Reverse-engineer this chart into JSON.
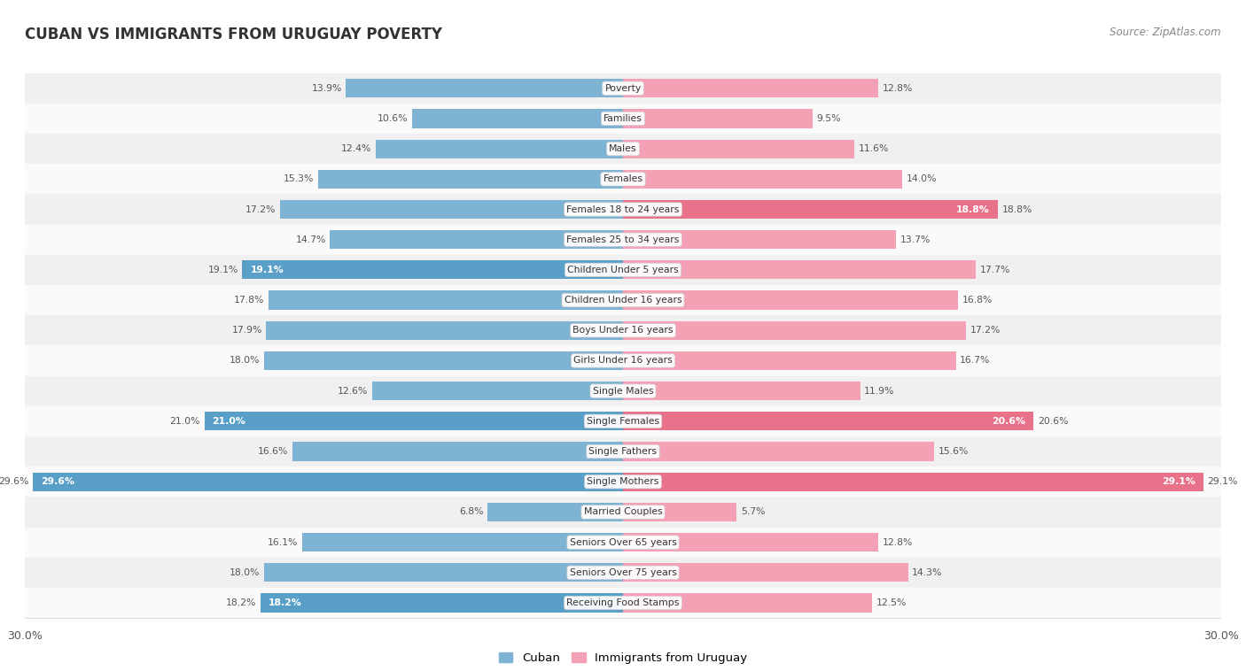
{
  "title": "CUBAN VS IMMIGRANTS FROM URUGUAY POVERTY",
  "source": "Source: ZipAtlas.com",
  "categories": [
    "Poverty",
    "Families",
    "Males",
    "Females",
    "Females 18 to 24 years",
    "Females 25 to 34 years",
    "Children Under 5 years",
    "Children Under 16 years",
    "Boys Under 16 years",
    "Girls Under 16 years",
    "Single Males",
    "Single Females",
    "Single Fathers",
    "Single Mothers",
    "Married Couples",
    "Seniors Over 65 years",
    "Seniors Over 75 years",
    "Receiving Food Stamps"
  ],
  "cuban_values": [
    13.9,
    10.6,
    12.4,
    15.3,
    17.2,
    14.7,
    19.1,
    17.8,
    17.9,
    18.0,
    12.6,
    21.0,
    16.6,
    29.6,
    6.8,
    16.1,
    18.0,
    18.2
  ],
  "uruguay_values": [
    12.8,
    9.5,
    11.6,
    14.0,
    18.8,
    13.7,
    17.7,
    16.8,
    17.2,
    16.7,
    11.9,
    20.6,
    15.6,
    29.1,
    5.7,
    12.8,
    14.3,
    12.5
  ],
  "cuban_color": "#7fb3d3",
  "uruguay_color": "#f4a0b5",
  "cuban_highlight_indices": [
    6,
    11,
    13,
    17
  ],
  "uruguay_highlight_indices": [
    4,
    11,
    13
  ],
  "cuban_highlight_color": "#5a9fc8",
  "uruguay_highlight_color": "#e8728a",
  "row_color_even": "#f0f0f0",
  "row_color_odd": "#fafafa",
  "background_color": "#ffffff",
  "xlim": 30.0,
  "legend_label_cuban": "Cuban",
  "legend_label_uruguay": "Immigrants from Uruguay"
}
